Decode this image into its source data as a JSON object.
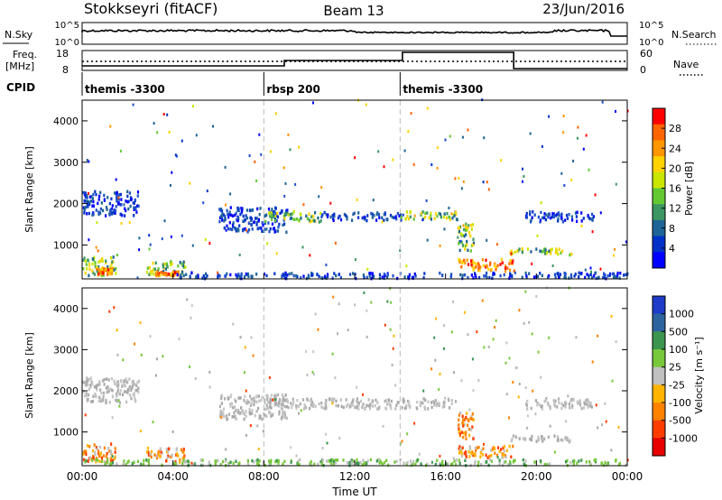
{
  "header": {
    "station": "Stokkseyri (fitACF)",
    "beam": "Beam 13",
    "date": "23/Jun/2016"
  },
  "meta_panels": {
    "nsky_label": "N.Sky",
    "nsky_ticks": [
      "10^5",
      "10^0"
    ],
    "nsearch_label": "N.Search",
    "nsearch_ticks": [
      "10^5",
      "10^0"
    ],
    "freq_label": "Freq.",
    "freq_unit": "[MHz]",
    "freq_ticks": [
      "18",
      "8"
    ],
    "nave_label": "Nave",
    "nave_ticks": [
      "60",
      "0"
    ],
    "cpid_label": "CPID"
  },
  "cpid_segments": [
    {
      "start_hour": 0,
      "label": "themis -3300"
    },
    {
      "start_hour": 8,
      "label": "rbsp 200"
    },
    {
      "start_hour": 14,
      "label": "themis -3300"
    }
  ],
  "x_axis": {
    "title": "Time UT",
    "ticks": [
      "00:00",
      "04:00",
      "08:00",
      "12:00",
      "16:00",
      "20:00",
      "00:00"
    ],
    "tick_hours": [
      0,
      4,
      8,
      12,
      16,
      20,
      24
    ],
    "range_hours": [
      0,
      24
    ]
  },
  "freq_trace": {
    "hours": [
      0,
      8.9,
      8.9,
      14.1,
      14.1,
      19,
      19,
      24
    ],
    "nave": [
      10,
      10,
      30,
      30,
      60,
      60,
      0,
      0
    ]
  },
  "chart_data": [
    {
      "type": "heatmap",
      "name": "power",
      "ylabel": "Slant Range [km]",
      "yticks": [
        1000,
        2000,
        3000,
        4000
      ],
      "ylim": [
        180,
        4500
      ],
      "colorbar_label": "Power [dB]",
      "colorbar_ticks": [
        "28",
        "24",
        "20",
        "16",
        "12",
        "8",
        "4"
      ],
      "colorbar_colors": [
        "#ff0000",
        "#ff6400",
        "#ff9600",
        "#ffd200",
        "#c8e600",
        "#64c832",
        "#3c9664",
        "#1e6496",
        "#0032c8",
        "#0000ff"
      ],
      "regions": [
        {
          "h0": 0.0,
          "h1": 1.5,
          "r0": 250,
          "r1": 700,
          "val": "mid"
        },
        {
          "h0": 0.5,
          "h1": 1.3,
          "r0": 280,
          "r1": 420,
          "val": "high"
        },
        {
          "h0": 0.0,
          "h1": 2.5,
          "r0": 1700,
          "r1": 2300,
          "val": "low"
        },
        {
          "h0": 2.8,
          "h1": 4.5,
          "r0": 250,
          "r1": 600,
          "val": "mid"
        },
        {
          "h0": 3.2,
          "h1": 4.2,
          "r0": 250,
          "r1": 350,
          "val": "high"
        },
        {
          "h0": 4.0,
          "h1": 8.0,
          "r0": 180,
          "r1": 320,
          "val": "low"
        },
        {
          "h0": 6.0,
          "h1": 9.0,
          "r0": 1300,
          "r1": 1900,
          "val": "low"
        },
        {
          "h0": 8.0,
          "h1": 10.5,
          "r0": 1550,
          "r1": 1800,
          "val": "mid"
        },
        {
          "h0": 10.5,
          "h1": 14.0,
          "r0": 1580,
          "r1": 1780,
          "val": "low"
        },
        {
          "h0": 14.0,
          "h1": 16.5,
          "r0": 1600,
          "r1": 1800,
          "val": "mid"
        },
        {
          "h0": 16.5,
          "h1": 17.2,
          "r0": 800,
          "r1": 1500,
          "val": "mid"
        },
        {
          "h0": 16.5,
          "h1": 19.0,
          "r0": 350,
          "r1": 650,
          "val": "high"
        },
        {
          "h0": 18.8,
          "h1": 21.5,
          "r0": 750,
          "r1": 900,
          "val": "mid"
        },
        {
          "h0": 19.5,
          "h1": 22.5,
          "r0": 1550,
          "r1": 1800,
          "val": "low"
        },
        {
          "h0": 8.0,
          "h1": 24.0,
          "r0": 180,
          "r1": 320,
          "val": "low"
        }
      ]
    },
    {
      "type": "heatmap",
      "name": "velocity",
      "ylabel": "Slant Range [km]",
      "yticks": [
        1000,
        2000,
        3000,
        4000
      ],
      "ylim": [
        180,
        4500
      ],
      "colorbar_label": "Velocity [m s⁻¹]",
      "colorbar_ticks": [
        "1000",
        "500",
        "100",
        "25",
        "-25",
        "-100",
        "-500",
        "-1000"
      ],
      "colorbar_colors": [
        "#1e3cc8",
        "#2d64a0",
        "#3c9650",
        "#78c83c",
        "#c0c0c0",
        "#ffb400",
        "#ff8200",
        "#ff3c00",
        "#e60000"
      ],
      "regions": [
        {
          "h0": 0.0,
          "h1": 1.5,
          "r0": 250,
          "r1": 700,
          "val": "neg"
        },
        {
          "h0": 0.0,
          "h1": 2.5,
          "r0": 1700,
          "r1": 2300,
          "val": "gray"
        },
        {
          "h0": 2.8,
          "h1": 4.5,
          "r0": 250,
          "r1": 600,
          "val": "neg"
        },
        {
          "h0": 0.0,
          "h1": 24.0,
          "r0": 180,
          "r1": 320,
          "val": "pos"
        },
        {
          "h0": 6.0,
          "h1": 9.0,
          "r0": 1300,
          "r1": 1900,
          "val": "gray"
        },
        {
          "h0": 8.0,
          "h1": 16.5,
          "r0": 1550,
          "r1": 1800,
          "val": "gray"
        },
        {
          "h0": 16.5,
          "h1": 17.2,
          "r0": 800,
          "r1": 1500,
          "val": "neg"
        },
        {
          "h0": 16.5,
          "h1": 19.0,
          "r0": 350,
          "r1": 650,
          "val": "neg"
        },
        {
          "h0": 18.8,
          "h1": 21.5,
          "r0": 750,
          "r1": 900,
          "val": "gray"
        },
        {
          "h0": 19.5,
          "h1": 22.5,
          "r0": 1550,
          "r1": 1800,
          "val": "gray"
        }
      ]
    }
  ]
}
